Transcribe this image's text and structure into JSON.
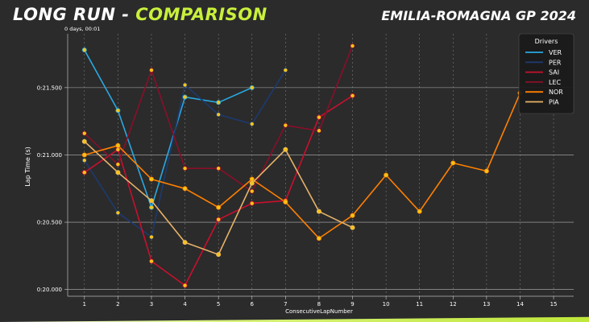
{
  "header": {
    "title_main": "LONG RUN - ",
    "title_accent": "COMPARISON",
    "event": "EMILIA-ROMAGNA GP 2024"
  },
  "colors": {
    "accent": "#c8f03c",
    "marker": "#f5c518",
    "background": "#2b2b2b",
    "grid": "#8a8a8a"
  },
  "chart_data": {
    "type": "line",
    "offset_label": "0 days, 00:01",
    "xlabel": "ConsecutiveLapNumber",
    "ylabel": "Lap Time (s)",
    "xlim": [
      0.5,
      15.6
    ],
    "ylim": [
      19.95,
      21.9
    ],
    "x_ticks": [
      1,
      2,
      3,
      4,
      5,
      6,
      7,
      8,
      9,
      10,
      11,
      12,
      13,
      14,
      15
    ],
    "y_ticks": [
      {
        "value": 20.0,
        "label": "0:20.000"
      },
      {
        "value": 20.5,
        "label": "0:20.500"
      },
      {
        "value": 21.0,
        "label": "0:21.000"
      },
      {
        "value": 21.5,
        "label": "0:21.500"
      }
    ],
    "legend_title": "Drivers",
    "legend_position": "top-right",
    "grid": true,
    "series": [
      {
        "name": "VER",
        "color": "#29a8e0",
        "x": [
          1,
          2,
          3,
          4,
          5,
          6
        ],
        "y": [
          21.78,
          21.33,
          20.61,
          21.43,
          21.39,
          21.5
        ]
      },
      {
        "name": "PER",
        "color": "#1c3a70",
        "x": [
          1,
          2,
          3,
          4,
          5,
          6,
          7
        ],
        "y": [
          20.96,
          20.57,
          20.39,
          21.52,
          21.3,
          21.23,
          21.63
        ]
      },
      {
        "name": "SAI",
        "color": "#c8102e",
        "x": [
          1,
          2,
          3,
          4,
          5,
          6,
          7,
          8,
          9
        ],
        "y": [
          20.87,
          21.04,
          20.21,
          20.03,
          20.52,
          20.64,
          20.66,
          21.28,
          21.44
        ]
      },
      {
        "name": "LEC",
        "color": "#8a0f2a",
        "x": [
          1,
          2,
          3,
          4,
          5,
          6,
          7,
          8,
          9
        ],
        "y": [
          21.16,
          20.93,
          21.63,
          20.9,
          20.9,
          20.73,
          21.22,
          21.18,
          21.81
        ]
      },
      {
        "name": "NOR",
        "color": "#ff8000",
        "x": [
          1,
          2,
          3,
          4,
          5,
          6,
          7,
          8,
          9,
          10,
          11,
          12,
          13,
          14
        ],
        "y": [
          21.0,
          21.07,
          20.82,
          20.75,
          20.61,
          20.82,
          20.65,
          20.38,
          20.55,
          20.85,
          20.58,
          20.94,
          20.88,
          21.46
        ]
      },
      {
        "name": "PIA",
        "color": "#e8b36a",
        "x": [
          1,
          2,
          3,
          4,
          5,
          6,
          7,
          8,
          9
        ],
        "y": [
          21.1,
          20.87,
          20.66,
          20.35,
          20.26,
          20.79,
          21.04,
          20.58,
          20.46
        ]
      }
    ]
  }
}
